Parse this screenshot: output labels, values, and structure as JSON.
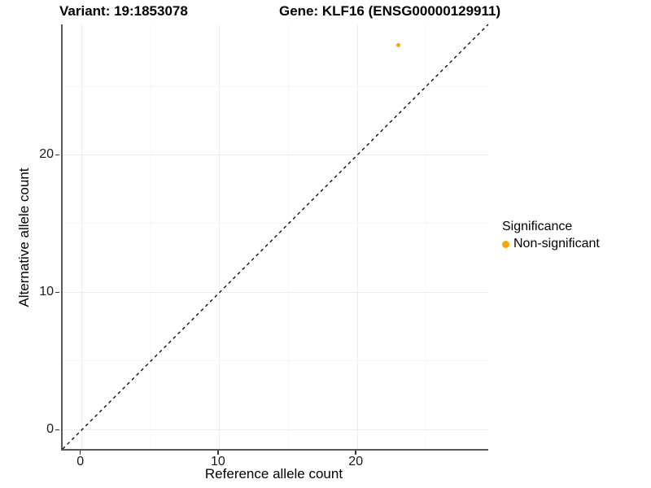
{
  "chart_data": {
    "type": "scatter",
    "title_left": "Variant: 19:1853078",
    "title_right": "Gene: KLF16 (ENSG00000129911)",
    "xlabel": "Reference allele count",
    "ylabel": "Alternative allele count",
    "xlim": [
      -1.4,
      29.5
    ],
    "ylim": [
      -1.4,
      29.5
    ],
    "x_major_ticks": [
      0,
      10,
      20
    ],
    "y_major_ticks": [
      0,
      10,
      20
    ],
    "x_minor_ticks": [
      5,
      15,
      25
    ],
    "y_minor_ticks": [
      5,
      15,
      25
    ],
    "grid": "major-and-minor, light gray on white",
    "points": [
      {
        "x": 23,
        "y": 28,
        "series": "Non-significant",
        "color": "#FFA500"
      }
    ],
    "reference_line": {
      "type": "identity y=x",
      "from": [
        -1.4,
        -1.4
      ],
      "to": [
        29.5,
        29.5
      ],
      "style": "dashed",
      "color": "#000000"
    },
    "legend": {
      "title": "Significance",
      "position": "right",
      "entries": [
        {
          "label": "Non-significant",
          "color": "#FFA500"
        }
      ]
    },
    "colors": {
      "background": "#ffffff",
      "axis_line": "#595959",
      "tick_mark": "#333333",
      "grid_major": "#ececec",
      "grid_minor": "#f5f5f5",
      "point": "#FFA500"
    }
  }
}
